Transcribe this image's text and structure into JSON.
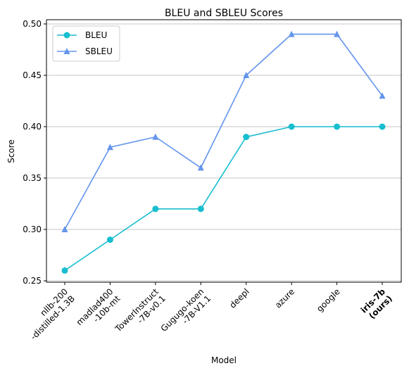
{
  "chart_data": {
    "type": "line",
    "title": "BLEU and SBLEU Scores",
    "xlabel": "Model",
    "ylabel": "Score",
    "categories": [
      [
        "nllb-200",
        "-distilled-1.3B"
      ],
      [
        "madlad400",
        "-10b-mt"
      ],
      [
        "TowerInstruct",
        "-7B-v0.1"
      ],
      [
        "Gugugo-koen",
        "-7B-V1.1"
      ],
      [
        "deepl"
      ],
      [
        "azure"
      ],
      [
        "google"
      ],
      [
        "iris-7b",
        "(ours)"
      ]
    ],
    "bold_categories": [
      7
    ],
    "ylim": [
      0.25,
      0.5
    ],
    "yticks": [
      "0.25",
      "0.30",
      "0.35",
      "0.40",
      "0.45",
      "0.50"
    ],
    "grid": "horizontal",
    "legend_position": "top-left",
    "series": [
      {
        "name": "BLEU",
        "color": "#17becf",
        "marker": "circle",
        "values": [
          0.26,
          0.29,
          0.32,
          0.32,
          0.39,
          0.4,
          0.4,
          0.4
        ]
      },
      {
        "name": "SBLEU",
        "color": "#6495ed",
        "marker": "triangle",
        "values": [
          0.3,
          0.38,
          0.39,
          0.36,
          0.45,
          0.49,
          0.49,
          0.43
        ]
      }
    ]
  }
}
